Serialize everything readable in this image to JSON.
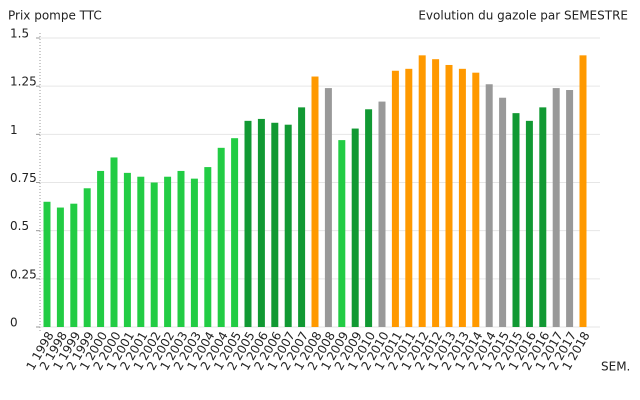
{
  "chart_data": {
    "type": "bar",
    "title": "Evolution du gazole par SEMESTRE",
    "y_label": "Prix pompe TTC",
    "x_label": "SEM.",
    "categories": [
      "1 1998",
      "2 1998",
      "1 1999",
      "2 1999",
      "1 2000",
      "2 2000",
      "1 2001",
      "2 2001",
      "1 2002",
      "2 2002",
      "1 2003",
      "2 2003",
      "1 2004",
      "2 2004",
      "1 2005",
      "2 2005",
      "1 2006",
      "2 2006",
      "1 2007",
      "2 2007",
      "1 2008",
      "2 2008",
      "1 2009",
      "2 2009",
      "1 2010",
      "2 2010",
      "1 2011",
      "2 2011",
      "1 2012",
      "2 2012",
      "1 2013",
      "2 2013",
      "1 2014",
      "2 2014",
      "1 2015",
      "2 2015",
      "1 2016",
      "2 2016",
      "1 2017",
      "2 2017",
      "1 2018"
    ],
    "values": [
      0.65,
      0.62,
      0.64,
      0.72,
      0.81,
      0.88,
      0.8,
      0.78,
      0.75,
      0.78,
      0.81,
      0.77,
      0.83,
      0.93,
      0.98,
      1.07,
      1.08,
      1.06,
      1.05,
      1.14,
      1.3,
      1.24,
      0.97,
      1.03,
      1.13,
      1.17,
      1.33,
      1.34,
      1.41,
      1.39,
      1.36,
      1.34,
      1.32,
      1.26,
      1.19,
      1.11,
      1.07,
      1.14,
      1.24,
      1.23,
      1.41
    ],
    "colors": [
      "#22cc44",
      "#22cc44",
      "#22cc44",
      "#22cc44",
      "#22cc44",
      "#22cc44",
      "#22cc44",
      "#22cc44",
      "#22cc44",
      "#22cc44",
      "#22cc44",
      "#22cc44",
      "#22cc44",
      "#22cc44",
      "#22cc44",
      "#119933",
      "#119933",
      "#119933",
      "#119933",
      "#119933",
      "#ff9900",
      "#999999",
      "#22cc44",
      "#119933",
      "#119933",
      "#999999",
      "#ff9900",
      "#ff9900",
      "#ff9900",
      "#ff9900",
      "#ff9900",
      "#ff9900",
      "#ff9900",
      "#999999",
      "#999999",
      "#119933",
      "#119933",
      "#119933",
      "#999999",
      "#999999",
      "#ff9900"
    ],
    "ylim": [
      0,
      1.5
    ],
    "yticks": [
      0,
      0.25,
      0.5,
      0.75,
      1,
      1.25,
      1.5
    ],
    "grid": true
  }
}
